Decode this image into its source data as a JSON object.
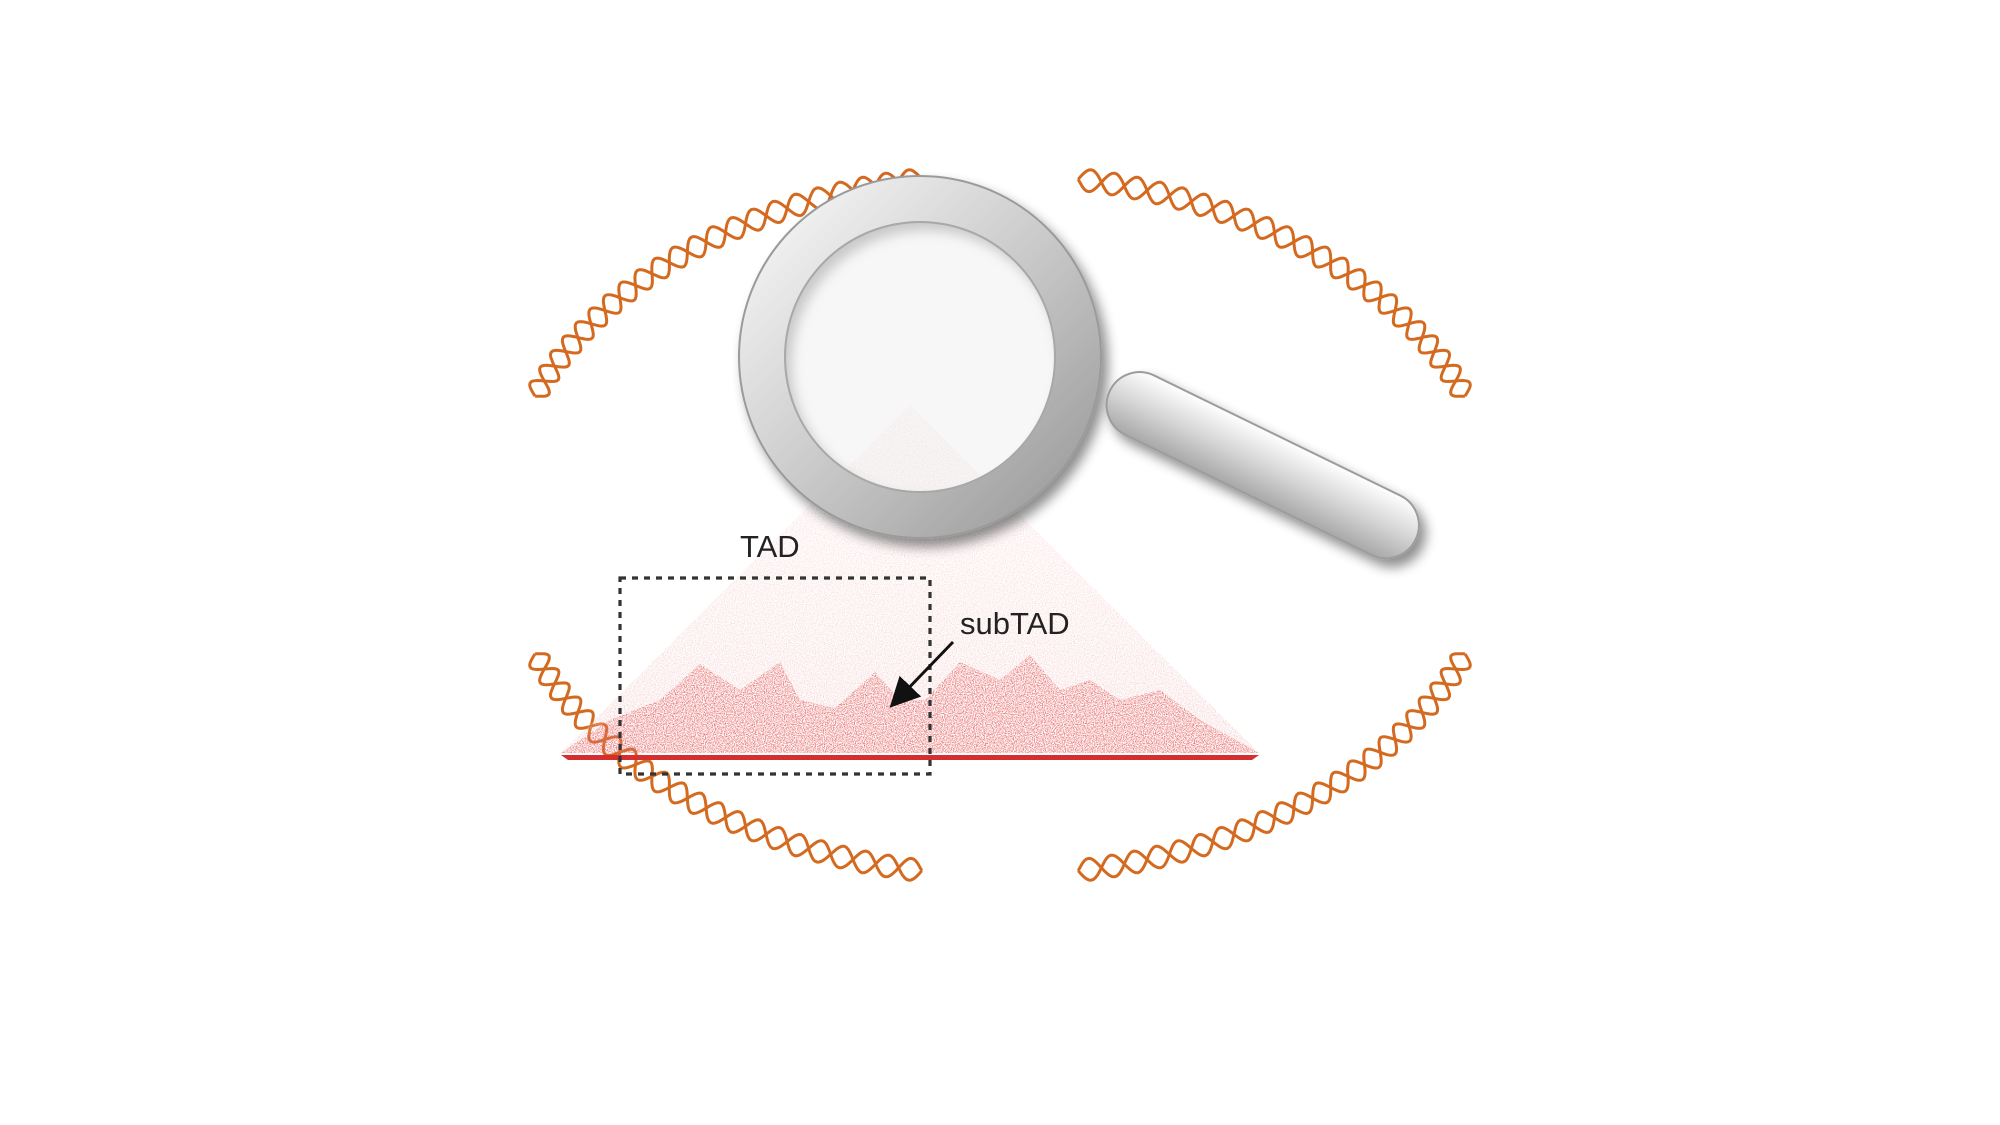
{
  "labels": {
    "tad": "TAD",
    "subtad": "subTAD"
  },
  "colors": {
    "dna_strand": "#d46a1f",
    "contact_strong": "#e03030",
    "contact_faint": "#f4c6c6",
    "magnifier_metal": "#d9d9d9",
    "dashed_box": "#333333",
    "arrow": "#111111"
  },
  "icons": {
    "magnifier": "magnifying-glass-icon",
    "dna": "dna-helix-icon"
  }
}
